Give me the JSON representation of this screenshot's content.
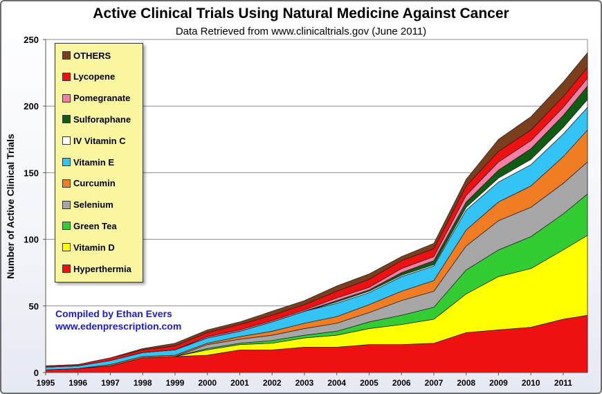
{
  "chart_data": {
    "type": "area",
    "stacked": true,
    "title": "Active Clinical Trials Using Natural Medicine Against Cancer",
    "subtitle": "Data Retrieved from www.clinicaltrials.gov (June 2011)",
    "ylabel": "Number of Active Clinical Trials",
    "xlabel": "",
    "xlim": [
      1995,
      2011.75
    ],
    "ylim": [
      0,
      250
    ],
    "yticks": [
      0,
      50,
      100,
      150,
      200,
      250
    ],
    "xticks": [
      1995,
      1996,
      1997,
      1998,
      1999,
      2000,
      2001,
      2002,
      2003,
      2004,
      2005,
      2006,
      2007,
      2008,
      2009,
      2010,
      2011
    ],
    "grid": "horizontal",
    "legend_position": "top-left",
    "x": [
      1995,
      1996,
      1997,
      1998,
      1999,
      2000,
      2001,
      2002,
      2003,
      2004,
      2005,
      2006,
      2007,
      2008,
      2009,
      2010,
      2011,
      2011.75
    ],
    "series": [
      {
        "name": "Hyperthermia",
        "color": "#ee1111",
        "values": [
          2,
          3,
          5,
          11,
          12,
          13,
          17,
          17,
          19,
          19,
          21,
          21,
          22,
          30,
          32,
          34,
          40,
          43
        ]
      },
      {
        "name": "Vitamin D",
        "color": "#ffff00",
        "values": [
          0,
          0,
          0,
          0,
          0,
          4,
          4,
          5,
          7,
          9,
          12,
          15,
          18,
          29,
          40,
          44,
          52,
          60
        ]
      },
      {
        "name": "Green Tea",
        "color": "#33cc33",
        "values": [
          0,
          0,
          0,
          0,
          0,
          1,
          1,
          2,
          2,
          3,
          5,
          7,
          9,
          18,
          20,
          24,
          27,
          31
        ]
      },
      {
        "name": "Selenium",
        "color": "#a6a6a6",
        "values": [
          0,
          0,
          0,
          0,
          0,
          3,
          3,
          4,
          5,
          6,
          7,
          11,
          12,
          18,
          22,
          22,
          23,
          24
        ]
      },
      {
        "name": "Curcumin",
        "color": "#f07c24",
        "values": [
          0,
          0,
          1,
          1,
          1,
          1,
          2,
          3,
          4,
          5,
          6,
          7,
          8,
          12,
          14,
          16,
          20,
          24
        ]
      },
      {
        "name": "Vitamin E",
        "color": "#33c3f4",
        "values": [
          2,
          2,
          3,
          3,
          4,
          4,
          4,
          7,
          9,
          10,
          9,
          11,
          11,
          15,
          15,
          16,
          17,
          17
        ]
      },
      {
        "name": "IV Vitamin C",
        "color": "#ffffff",
        "values": [
          0,
          0,
          0,
          0,
          0,
          0,
          0,
          0,
          0,
          1,
          1,
          1,
          1,
          2,
          3,
          4,
          5,
          6
        ]
      },
      {
        "name": "Sulforaphane",
        "color": "#0f5c12",
        "values": [
          0,
          0,
          0,
          0,
          0,
          0,
          0,
          0,
          0,
          1,
          1,
          2,
          3,
          4,
          6,
          8,
          9,
          10
        ]
      },
      {
        "name": "Pomegranate",
        "color": "#f67ea6",
        "values": [
          0,
          0,
          0,
          0,
          0,
          1,
          1,
          1,
          1,
          2,
          2,
          3,
          3,
          5,
          6,
          6,
          6,
          6
        ]
      },
      {
        "name": "Lycopene",
        "color": "#ee1111",
        "values": [
          1,
          1,
          2,
          2,
          3,
          3,
          4,
          4,
          4,
          5,
          6,
          6,
          6,
          7,
          8,
          8,
          8,
          8
        ]
      },
      {
        "name": "OTHERS",
        "color": "#7a3f1c",
        "values": [
          0,
          0,
          0,
          1,
          2,
          2,
          2,
          3,
          3,
          4,
          4,
          3,
          4,
          5,
          9,
          10,
          11,
          11
        ]
      }
    ]
  },
  "credit": {
    "line1": "Compiled by Ethan Evers",
    "line2": "www.edenprescription.com"
  }
}
